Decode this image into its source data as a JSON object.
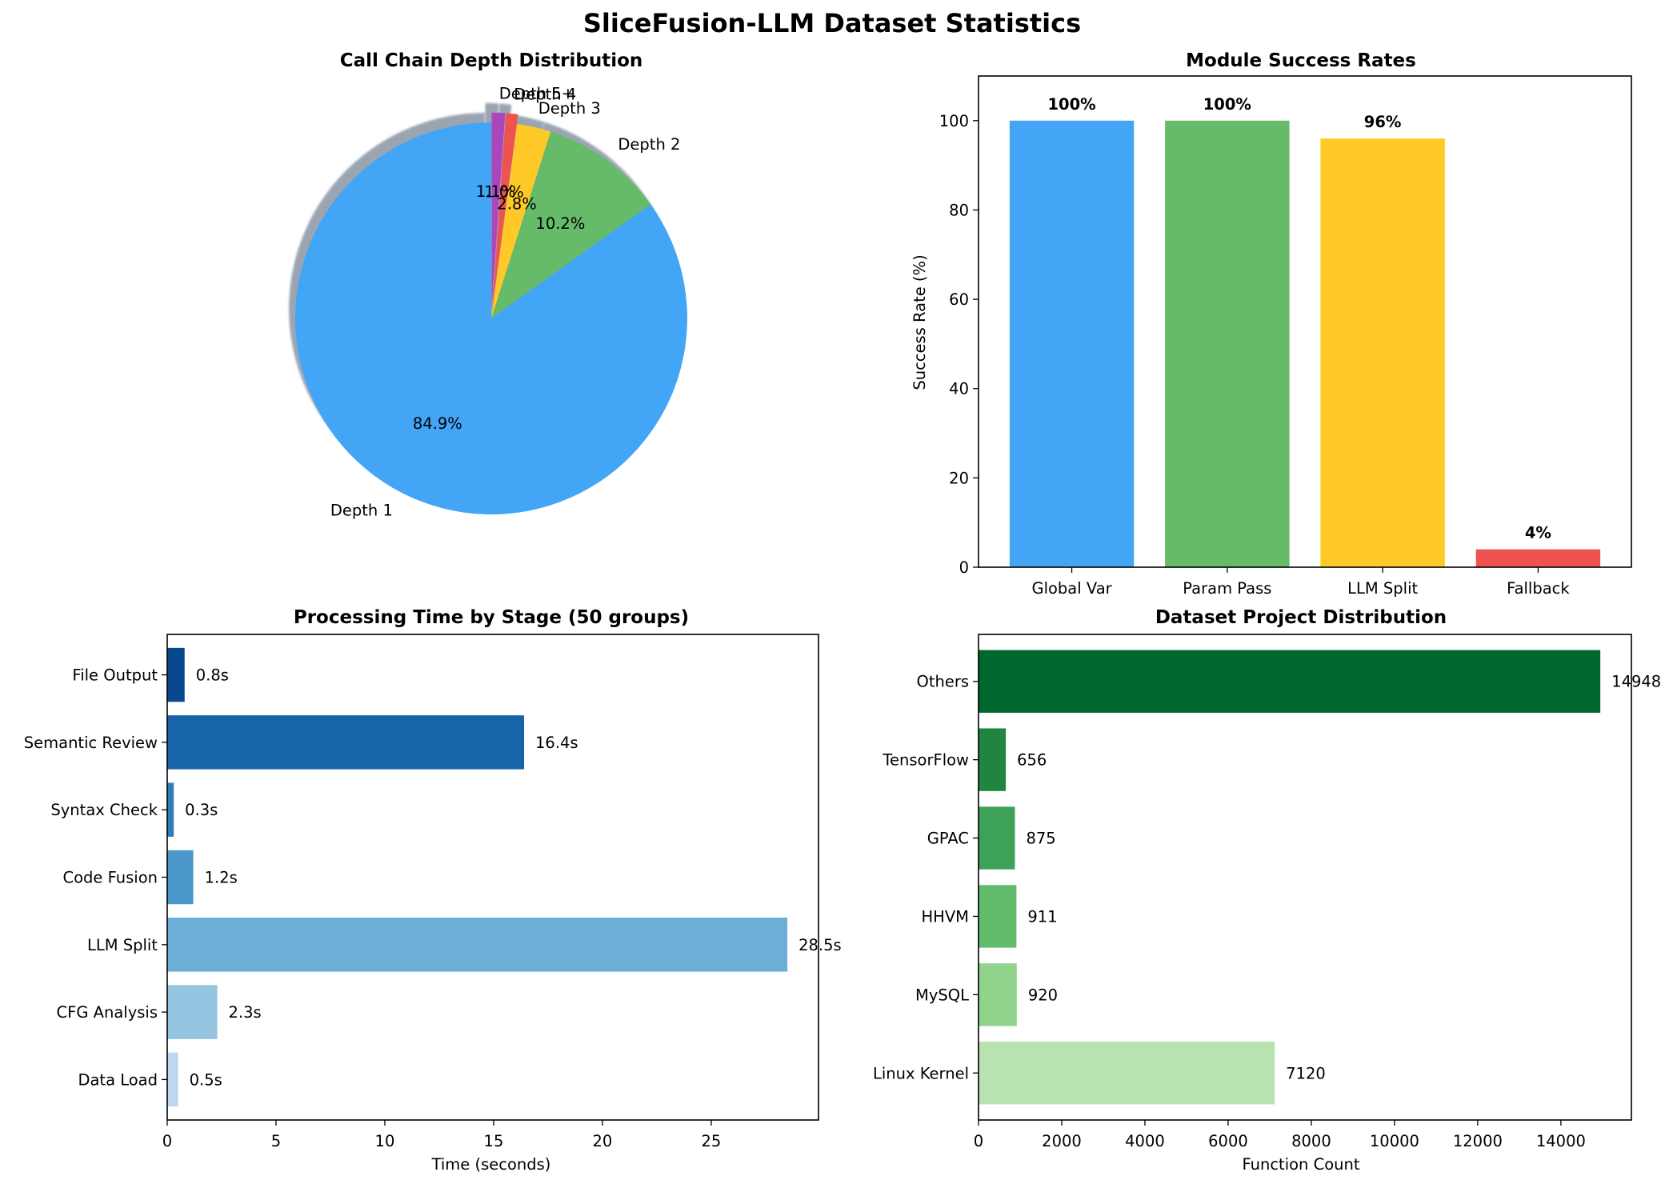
{
  "figure": {
    "title": "SliceFusion-LLM Dataset Statistics"
  },
  "chart_data": [
    {
      "type": "pie",
      "title": "Call Chain Depth Distribution",
      "labels": [
        "Depth 1",
        "Depth 2",
        "Depth 3",
        "Depth 4",
        "Depth 5+"
      ],
      "values": [
        84.9,
        10.2,
        2.8,
        1.0,
        1.1
      ],
      "autopct_labels": [
        "84.9%",
        "10.2%",
        "2.8%",
        "1.0%",
        "1.1%"
      ],
      "colors": [
        "#42A5F5",
        "#66BB6A",
        "#FFCA28",
        "#EF5350",
        "#AB47BC"
      ],
      "explode": [
        0,
        0,
        0,
        0.05,
        0.05
      ],
      "start_angle_deg": 90,
      "shadow": true
    },
    {
      "type": "bar",
      "title": "Module Success Rates",
      "categories": [
        "Global Var",
        "Param Pass",
        "LLM Split",
        "Fallback"
      ],
      "values": [
        100,
        100,
        96,
        4
      ],
      "data_labels": [
        "100%",
        "100%",
        "96%",
        "4%"
      ],
      "colors": [
        "#42A5F5",
        "#66BB6A",
        "#FFCA28",
        "#EF5350"
      ],
      "xlabel": "",
      "ylabel": "Success Rate (%)",
      "ylim": [
        0,
        110
      ],
      "yticks": [
        0,
        20,
        40,
        60,
        80,
        100
      ]
    },
    {
      "type": "bar",
      "orientation": "horizontal",
      "title": "Processing Time by Stage (50 groups)",
      "categories": [
        "Data Load",
        "CFG Analysis",
        "LLM Split",
        "Code Fusion",
        "Syntax Check",
        "Semantic Review",
        "File Output"
      ],
      "values": [
        0.5,
        2.3,
        28.5,
        1.2,
        0.3,
        16.4,
        0.8
      ],
      "data_labels": [
        "0.5s",
        "2.3s",
        "28.5s",
        "1.2s",
        "0.3s",
        "16.4s",
        "0.8s"
      ],
      "colors": [
        "#BDD7EE",
        "#94C4DF",
        "#6BAED6",
        "#4A98C9",
        "#2E7EBC",
        "#1764AB",
        "#08468E"
      ],
      "xlabel": "Time (seconds)",
      "ylabel": "",
      "xlim": [
        0,
        29.93
      ],
      "xticks": [
        0,
        5,
        10,
        15,
        20,
        25
      ]
    },
    {
      "type": "bar",
      "orientation": "horizontal",
      "title": "Dataset Project Distribution",
      "categories": [
        "Linux Kernel",
        "MySQL",
        "HHVM",
        "GPAC",
        "TensorFlow",
        "Others"
      ],
      "values": [
        7120,
        920,
        911,
        875,
        656,
        14948
      ],
      "data_labels": [
        "7120",
        "920",
        "911",
        "875",
        "656",
        "14948"
      ],
      "colors": [
        "#B8E3B1",
        "#91D28C",
        "#63BB6D",
        "#3DA257",
        "#1F8540",
        "#00682C"
      ],
      "xlabel": "Function Count",
      "ylabel": "",
      "xlim": [
        0,
        15695
      ],
      "xticks": [
        0,
        2000,
        4000,
        6000,
        8000,
        10000,
        12000,
        14000
      ]
    }
  ]
}
